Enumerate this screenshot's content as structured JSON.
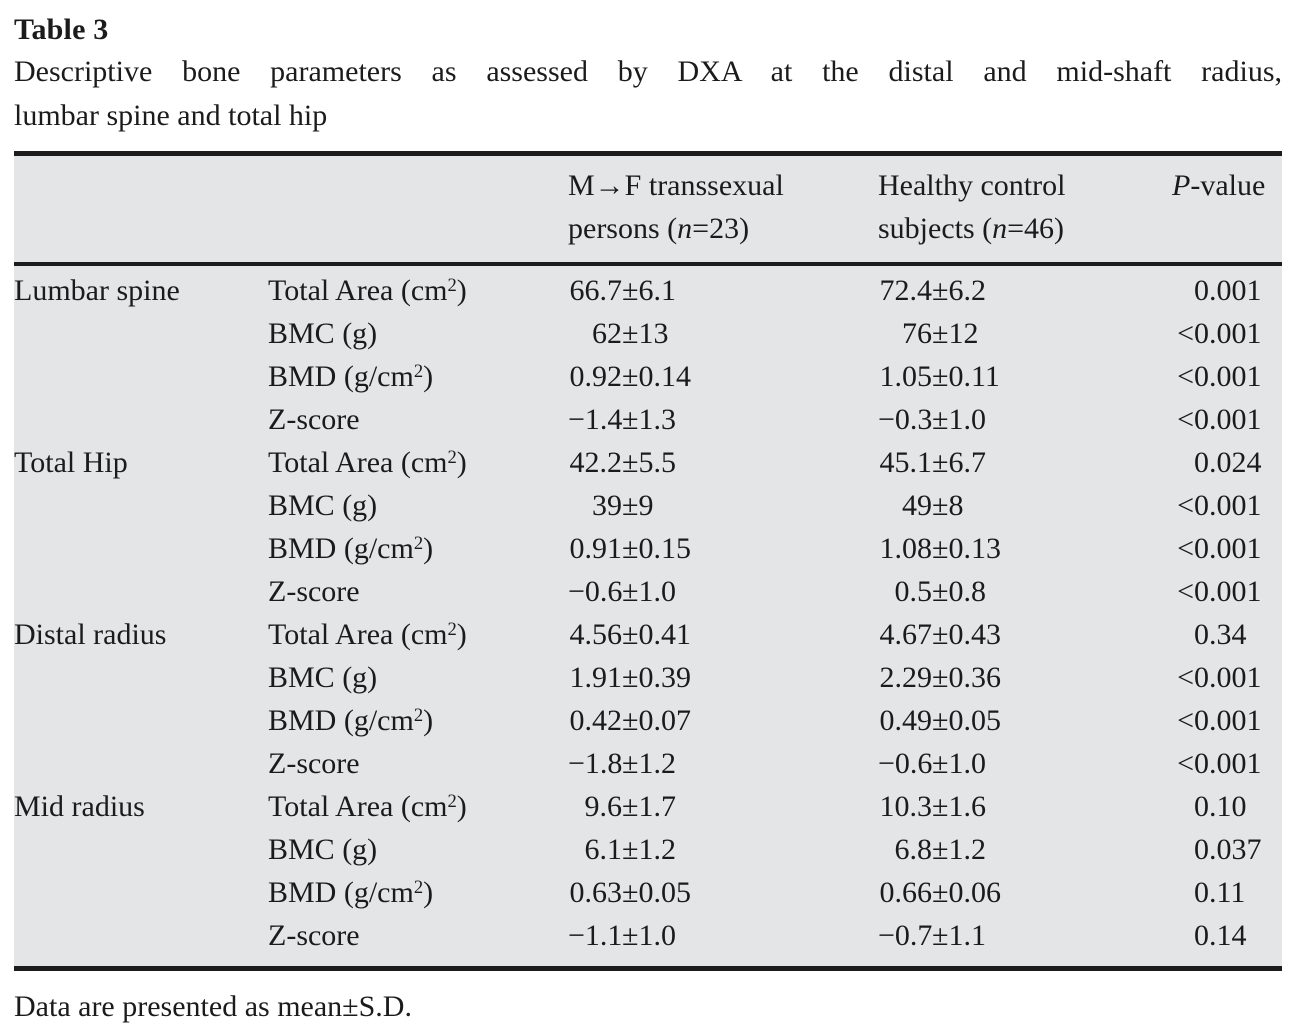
{
  "title": "Table 3",
  "caption": {
    "line1": "Descriptive bone parameters as assessed by DXA at the distal and mid-shaft radius,",
    "line2": "lumbar spine and total hip"
  },
  "symbols": {
    "pm": "±"
  },
  "header": {
    "mtf": {
      "line1": "M→F transsexual",
      "line2_pre": "persons (",
      "n": "n",
      "line2_post": "=23)"
    },
    "control": {
      "line1": "Healthy control",
      "line2_pre": "subjects (",
      "n": "n",
      "line2_post": "=46)"
    },
    "p": {
      "ital": "P",
      "rest": "-value"
    }
  },
  "rows": [
    {
      "group": "Lumbar spine",
      "param": {
        "pre": "Total Area (cm",
        "sup": "2",
        "post": ")"
      },
      "c1": {
        "l": "66.7",
        "r": "6.1"
      },
      "c2": {
        "l": "72.4",
        "r": "6.2"
      },
      "p": {
        "pre": "",
        "val": "0.001"
      }
    },
    {
      "group": "",
      "param": {
        "pre": "BMC (g)",
        "sup": "",
        "post": ""
      },
      "c1": {
        "l": "62",
        "r": "13"
      },
      "c2": {
        "l": "76",
        "r": "12"
      },
      "p": {
        "pre": "<",
        "val": "0.001"
      }
    },
    {
      "group": "",
      "param": {
        "pre": "BMD (g/cm",
        "sup": "2",
        "post": ")"
      },
      "c1": {
        "l": "0.92",
        "r": "0.14"
      },
      "c2": {
        "l": "1.05",
        "r": "0.11"
      },
      "p": {
        "pre": "<",
        "val": "0.001"
      }
    },
    {
      "group": "",
      "param": {
        "pre": "Z-score",
        "sup": "",
        "post": ""
      },
      "c1": {
        "l": "−1.4",
        "r": "1.3"
      },
      "c2": {
        "l": "−0.3",
        "r": "1.0"
      },
      "p": {
        "pre": "<",
        "val": "0.001"
      }
    },
    {
      "group": "Total Hip",
      "param": {
        "pre": "Total Area (cm",
        "sup": "2",
        "post": ")"
      },
      "c1": {
        "l": "42.2",
        "r": "5.5"
      },
      "c2": {
        "l": "45.1",
        "r": "6.7"
      },
      "p": {
        "pre": "",
        "val": "0.024"
      }
    },
    {
      "group": "",
      "param": {
        "pre": "BMC (g)",
        "sup": "",
        "post": ""
      },
      "c1": {
        "l": "39",
        "r": "9"
      },
      "c2": {
        "l": "49",
        "r": "8"
      },
      "p": {
        "pre": "<",
        "val": "0.001"
      }
    },
    {
      "group": "",
      "param": {
        "pre": "BMD (g/cm",
        "sup": "2",
        "post": ")"
      },
      "c1": {
        "l": "0.91",
        "r": "0.15"
      },
      "c2": {
        "l": "1.08",
        "r": "0.13"
      },
      "p": {
        "pre": "<",
        "val": "0.001"
      }
    },
    {
      "group": "",
      "param": {
        "pre": "Z-score",
        "sup": "",
        "post": ""
      },
      "c1": {
        "l": "−0.6",
        "r": "1.0"
      },
      "c2": {
        "l": "0.5",
        "r": "0.8"
      },
      "p": {
        "pre": "<",
        "val": "0.001"
      }
    },
    {
      "group": "Distal radius",
      "param": {
        "pre": "Total Area (cm",
        "sup": "2",
        "post": ")"
      },
      "c1": {
        "l": "4.56",
        "r": "0.41"
      },
      "c2": {
        "l": "4.67",
        "r": "0.43"
      },
      "p": {
        "pre": "",
        "val": "0.34"
      }
    },
    {
      "group": "",
      "param": {
        "pre": "BMC (g)",
        "sup": "",
        "post": ""
      },
      "c1": {
        "l": "1.91",
        "r": "0.39"
      },
      "c2": {
        "l": "2.29",
        "r": "0.36"
      },
      "p": {
        "pre": "<",
        "val": "0.001"
      }
    },
    {
      "group": "",
      "param": {
        "pre": "BMD (g/cm",
        "sup": "2",
        "post": ")"
      },
      "c1": {
        "l": "0.42",
        "r": "0.07"
      },
      "c2": {
        "l": "0.49",
        "r": "0.05"
      },
      "p": {
        "pre": "<",
        "val": "0.001"
      }
    },
    {
      "group": "",
      "param": {
        "pre": "Z-score",
        "sup": "",
        "post": ""
      },
      "c1": {
        "l": "−1.8",
        "r": "1.2"
      },
      "c2": {
        "l": "−0.6",
        "r": "1.0"
      },
      "p": {
        "pre": "<",
        "val": "0.001"
      }
    },
    {
      "group": "Mid radius",
      "param": {
        "pre": "Total Area (cm",
        "sup": "2",
        "post": ")"
      },
      "c1": {
        "l": "9.6",
        "r": "1.7"
      },
      "c2": {
        "l": "10.3",
        "r": "1.6"
      },
      "p": {
        "pre": "",
        "val": "0.10"
      }
    },
    {
      "group": "",
      "param": {
        "pre": "BMC (g)",
        "sup": "",
        "post": ""
      },
      "c1": {
        "l": "6.1",
        "r": "1.2"
      },
      "c2": {
        "l": "6.8",
        "r": "1.2"
      },
      "p": {
        "pre": "",
        "val": "0.037"
      }
    },
    {
      "group": "",
      "param": {
        "pre": "BMD (g/cm",
        "sup": "2",
        "post": ")"
      },
      "c1": {
        "l": "0.63",
        "r": "0.05"
      },
      "c2": {
        "l": "0.66",
        "r": "0.06"
      },
      "p": {
        "pre": "",
        "val": "0.11"
      }
    },
    {
      "group": "",
      "param": {
        "pre": "Z-score",
        "sup": "",
        "post": ""
      },
      "c1": {
        "l": "−1.1",
        "r": "1.0"
      },
      "c2": {
        "l": "−0.7",
        "r": "1.1"
      },
      "p": {
        "pre": "",
        "val": "0.14"
      }
    }
  ],
  "footnote": "Data are presented as mean±S.D."
}
